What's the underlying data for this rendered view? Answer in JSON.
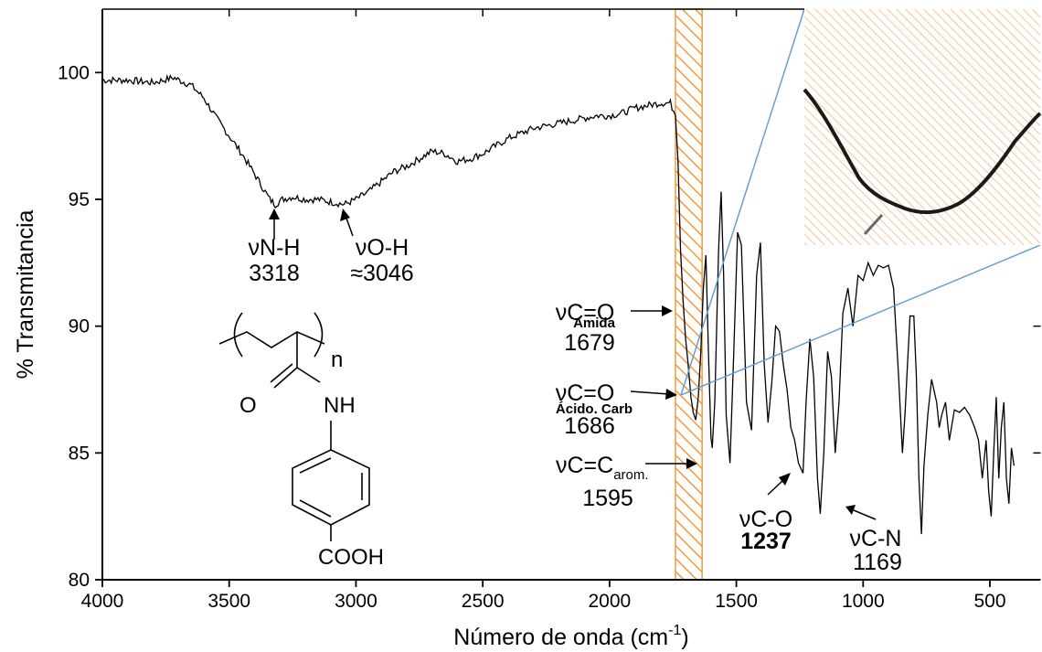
{
  "chart_data": {
    "type": "line",
    "xlabel": "Número de onda (cm",
    "xlabel_sup": "-1",
    "xlabel_close": ")",
    "ylabel": "% Transmitancia",
    "xlim": [
      4000,
      300
    ],
    "ylim": [
      80,
      102.5
    ],
    "x_ticks": [
      4000,
      3500,
      3000,
      2500,
      2000,
      1500,
      1000,
      500
    ],
    "y_ticks": [
      80,
      85,
      90,
      95,
      100
    ],
    "grid": false,
    "series": [
      {
        "x": [
          4000,
          3900,
          3800,
          3720,
          3650,
          3600,
          3550,
          3500,
          3450,
          3400,
          3370,
          3340,
          3318,
          3290,
          3250,
          3200,
          3150,
          3100,
          3046,
          3000,
          2950,
          2900,
          2850,
          2800,
          2750,
          2700,
          2650,
          2600,
          2550,
          2500,
          2450,
          2400,
          2350,
          2300,
          2250,
          2200,
          2150,
          2100,
          2050,
          2000,
          1950,
          1900,
          1850,
          1800,
          1760,
          1740,
          1730,
          1720,
          1710,
          1700,
          1690,
          1679,
          1670,
          1660,
          1650,
          1640,
          1630,
          1620,
          1610,
          1600,
          1595,
          1585,
          1570,
          1560,
          1550,
          1540,
          1525,
          1510,
          1495,
          1480,
          1460,
          1440,
          1420,
          1405,
          1390,
          1375,
          1360,
          1345,
          1330,
          1315,
          1300,
          1285,
          1270,
          1255,
          1237,
          1225,
          1210,
          1195,
          1180,
          1169,
          1155,
          1140,
          1125,
          1110,
          1095,
          1080,
          1060,
          1040,
          1020,
          1000,
          980,
          960,
          940,
          920,
          900,
          880,
          860,
          845,
          835,
          825,
          815,
          800,
          790,
          780,
          770,
          760,
          745,
          730,
          710,
          700,
          690,
          675,
          660,
          640,
          620,
          600,
          580,
          560,
          545,
          530,
          515,
          505,
          495,
          485,
          475,
          465,
          455,
          445,
          435,
          425,
          415,
          405
        ],
        "y": [
          99.7,
          99.7,
          99.6,
          99.8,
          99.5,
          99.0,
          98.2,
          97.5,
          96.8,
          96.0,
          95.5,
          95.0,
          94.8,
          95.0,
          95.1,
          95.0,
          95.0,
          94.9,
          94.8,
          95.0,
          95.3,
          95.7,
          96.1,
          96.3,
          96.6,
          96.9,
          96.8,
          96.5,
          96.6,
          96.8,
          97.1,
          97.4,
          97.6,
          97.8,
          97.9,
          98.0,
          98.1,
          98.2,
          98.3,
          98.3,
          98.4,
          98.6,
          98.7,
          98.8,
          98.8,
          98.3,
          96.5,
          93.0,
          91.0,
          89.5,
          88.5,
          87.2,
          86.6,
          86.3,
          87.2,
          89.0,
          91.5,
          92.8,
          89.0,
          85.6,
          85.2,
          87.0,
          93.0,
          95.3,
          92.0,
          86.5,
          84.6,
          89.0,
          93.7,
          93.2,
          87.0,
          85.9,
          92.0,
          93.3,
          88.5,
          86.2,
          87.8,
          90.0,
          89.8,
          88.5,
          87.5,
          86.0,
          85.5,
          84.6,
          84.2,
          87.0,
          89.5,
          88.0,
          84.0,
          82.6,
          85.0,
          89.0,
          88.0,
          85.0,
          87.0,
          90.5,
          91.5,
          90.0,
          92.0,
          91.8,
          92.5,
          92.0,
          92.4,
          92.3,
          92.4,
          91.5,
          88.0,
          85.0,
          86.5,
          88.5,
          90.4,
          90.4,
          88.0,
          84.0,
          81.8,
          84.5,
          86.5,
          87.9,
          87.0,
          86.0,
          86.5,
          87.0,
          85.5,
          86.7,
          86.6,
          86.8,
          86.5,
          86.0,
          85.5,
          84.0,
          85.5,
          83.5,
          82.5,
          85.0,
          87.2,
          84.0,
          86.0,
          87.0,
          84.0,
          83.0,
          85.2,
          84.5
        ]
      }
    ],
    "annotations": {
      "nh": {
        "label": "νN-H",
        "value": "3318"
      },
      "oh": {
        "label": "νO-H",
        "value": "≈3046"
      },
      "co_amida": {
        "label": "νC=O",
        "sub": "Amida",
        "value": "1679"
      },
      "co_acido": {
        "label": "νC=O",
        "sub": "Ácido. Carb",
        "value": "1686"
      },
      "cc_arom": {
        "label": "νC=C",
        "sub": "arom.",
        "value": "1595"
      },
      "c_o": {
        "label": "νC-O",
        "value": "1237"
      },
      "c_n": {
        "label": "νC-N",
        "value": "1169"
      }
    },
    "structure": {
      "repeat": "n",
      "nh": "NH",
      "o": "O",
      "cooh": "COOH"
    },
    "highlight_band": [
      1740,
      1635
    ],
    "colors": {
      "line": "#000000",
      "hatch": "#f5a14a",
      "inset_line": "#5b9bd5"
    }
  }
}
